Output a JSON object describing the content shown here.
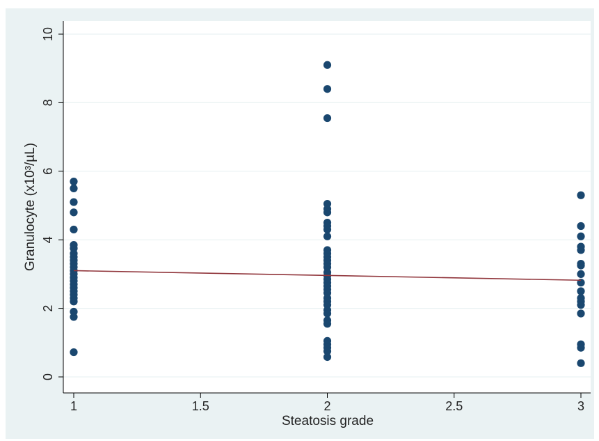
{
  "chart_data": {
    "type": "scatter",
    "xlabel": "Steatosis grade",
    "ylabel": "Granulocyte (x10³/µL)",
    "xlim": [
      1,
      3
    ],
    "ylim": [
      0,
      10
    ],
    "xticks": [
      "1",
      "1.5",
      "2",
      "2.5",
      "3"
    ],
    "xtick_values": [
      1,
      1.5,
      2,
      2.5,
      3
    ],
    "yticks": [
      "0",
      "2",
      "4",
      "6",
      "8",
      "10"
    ],
    "ytick_values": [
      0,
      2,
      4,
      6,
      8,
      10
    ],
    "grid": true,
    "legend": "none",
    "colors": {
      "background": "#eaf2f3",
      "plot_area": "#ffffff",
      "points": "#1a476f",
      "fit_line": "#90353b",
      "grid": "#eaf2f3",
      "axis": "#000000"
    },
    "series": [
      {
        "points": [
          [
            1,
            5.7
          ],
          [
            1,
            5.5
          ],
          [
            1,
            5.1
          ],
          [
            1,
            4.8
          ],
          [
            1,
            4.3
          ],
          [
            1,
            3.85
          ],
          [
            1,
            3.75
          ],
          [
            1,
            3.6
          ],
          [
            1,
            3.5
          ],
          [
            1,
            3.4
          ],
          [
            1,
            3.3
          ],
          [
            1,
            3.2
          ],
          [
            1,
            3.1
          ],
          [
            1,
            3.0
          ],
          [
            1,
            2.9
          ],
          [
            1,
            2.8
          ],
          [
            1,
            2.7
          ],
          [
            1,
            2.6
          ],
          [
            1,
            2.5
          ],
          [
            1,
            2.4
          ],
          [
            1,
            2.3
          ],
          [
            1,
            2.2
          ],
          [
            1,
            1.9
          ],
          [
            1,
            1.75
          ],
          [
            1,
            0.72
          ],
          [
            2,
            9.1
          ],
          [
            2,
            8.4
          ],
          [
            2,
            7.55
          ],
          [
            2,
            5.05
          ],
          [
            2,
            4.9
          ],
          [
            2,
            4.8
          ],
          [
            2,
            4.5
          ],
          [
            2,
            4.4
          ],
          [
            2,
            4.3
          ],
          [
            2,
            4.1
          ],
          [
            2,
            3.7
          ],
          [
            2,
            3.6
          ],
          [
            2,
            3.5
          ],
          [
            2,
            3.4
          ],
          [
            2,
            3.3
          ],
          [
            2,
            3.2
          ],
          [
            2,
            3.05
          ],
          [
            2,
            2.95
          ],
          [
            2,
            2.85
          ],
          [
            2,
            2.75
          ],
          [
            2,
            2.65
          ],
          [
            2,
            2.55
          ],
          [
            2,
            2.45
          ],
          [
            2,
            2.3
          ],
          [
            2,
            2.2
          ],
          [
            2,
            2.1
          ],
          [
            2,
            1.95
          ],
          [
            2,
            1.85
          ],
          [
            2,
            1.65
          ],
          [
            2,
            1.55
          ],
          [
            2,
            1.05
          ],
          [
            2,
            0.95
          ],
          [
            2,
            0.85
          ],
          [
            2,
            0.75
          ],
          [
            2,
            0.58
          ],
          [
            3,
            5.3
          ],
          [
            3,
            4.4
          ],
          [
            3,
            4.1
          ],
          [
            3,
            3.8
          ],
          [
            3,
            3.7
          ],
          [
            3,
            3.3
          ],
          [
            3,
            3.25
          ],
          [
            3,
            3.0
          ],
          [
            3,
            2.75
          ],
          [
            3,
            2.5
          ],
          [
            3,
            2.3
          ],
          [
            3,
            2.2
          ],
          [
            3,
            2.1
          ],
          [
            3,
            1.85
          ],
          [
            3,
            0.95
          ],
          [
            3,
            0.85
          ],
          [
            3,
            0.4
          ]
        ]
      }
    ],
    "fit_line": {
      "x": [
        1,
        3
      ],
      "y": [
        3.1,
        2.82
      ]
    }
  }
}
